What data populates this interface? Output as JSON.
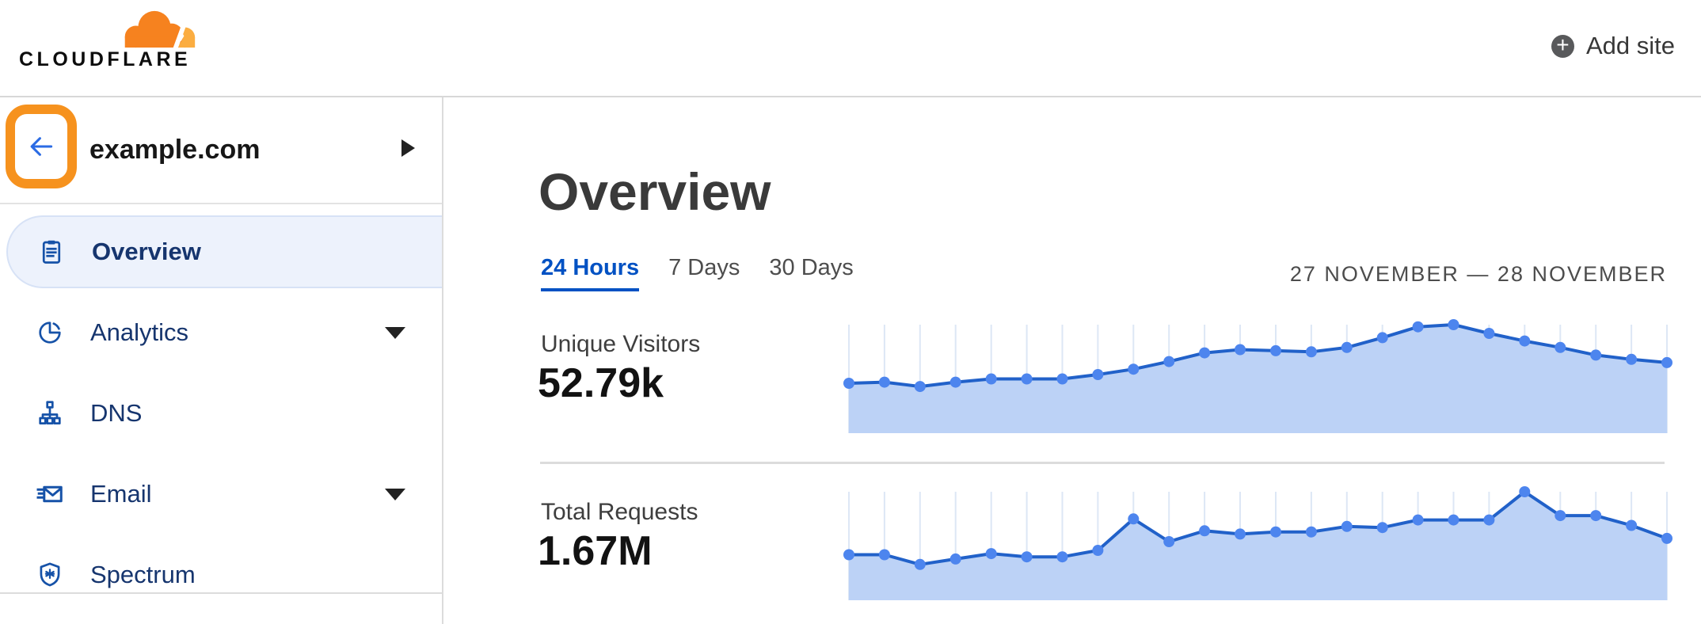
{
  "header": {
    "logo_text": "CLOUDFLARE",
    "logo_icon": "cloudflare-cloud-icon",
    "add_site_label": "Add site",
    "add_site_icon": "plus-circle-icon"
  },
  "sidebar": {
    "site_name": "example.com",
    "back_icon": "arrow-left-icon",
    "site_expand_icon": "caret-right-icon",
    "annotation": "orange rounded highlight around back button",
    "items": [
      {
        "label": "Overview",
        "icon": "clipboard-icon",
        "selected": true
      },
      {
        "label": "Analytics",
        "icon": "pie-chart-icon",
        "has_submenu": true
      },
      {
        "label": "DNS",
        "icon": "network-icon",
        "has_submenu": false
      },
      {
        "label": "Email",
        "icon": "email-icon",
        "has_submenu": true
      },
      {
        "label": "Spectrum",
        "icon": "shield-icon",
        "has_submenu": false
      }
    ]
  },
  "main": {
    "title": "Overview",
    "tabs": [
      {
        "label": "24 Hours",
        "active": true
      },
      {
        "label": "7 Days",
        "active": false
      },
      {
        "label": "30 Days",
        "active": false
      }
    ],
    "date_range": "27 NOVEMBER — 28 NOVEMBER"
  },
  "colors": {
    "brand_orange": "#F6821F",
    "brand_orange_light": "#FBAD41",
    "annotation_orange": "#F6921E",
    "link_blue": "#0051C3",
    "nav_text_navy": "#16356E",
    "icon_blue": "#1652A8",
    "back_arrow_blue": "#2B6BE4",
    "chart_line": "#2161C9",
    "chart_dot": "#4D85EE",
    "chart_fill": "#BCD2F6",
    "chart_grid": "#DDE7F5",
    "selected_item_bg": "#EDF2FC",
    "selected_item_border": "#D7E2F6",
    "divider_gray": "#DCDCDC",
    "add_circle_gray": "#58595B"
  },
  "chart_data": [
    {
      "type": "area",
      "title": "Unique Visitors",
      "total_display": "52.79k",
      "period": "24 Hours",
      "points": 24,
      "note": "sparkline, hourly points, no axis tick labels shown; values are relative heights",
      "ylim": [
        0,
        1
      ],
      "grid": "vertical lines at each point",
      "legend": "none",
      "relative_heights": [
        0.46,
        0.47,
        0.43,
        0.47,
        0.5,
        0.5,
        0.5,
        0.54,
        0.59,
        0.66,
        0.74,
        0.77,
        0.76,
        0.75,
        0.79,
        0.88,
        0.98,
        1.0,
        0.92,
        0.85,
        0.79,
        0.72,
        0.68,
        0.65
      ]
    },
    {
      "type": "area",
      "title": "Total Requests",
      "total_display": "1.67M",
      "period": "24 Hours",
      "points": 24,
      "note": "sparkline, hourly points, no axis tick labels shown; values are relative heights",
      "ylim": [
        0,
        1
      ],
      "grid": "vertical lines at each point",
      "legend": "none",
      "relative_heights": [
        0.42,
        0.42,
        0.33,
        0.38,
        0.43,
        0.4,
        0.4,
        0.46,
        0.75,
        0.54,
        0.64,
        0.61,
        0.63,
        0.63,
        0.68,
        0.67,
        0.74,
        0.74,
        0.74,
        1.0,
        0.78,
        0.78,
        0.69,
        0.57
      ]
    }
  ]
}
